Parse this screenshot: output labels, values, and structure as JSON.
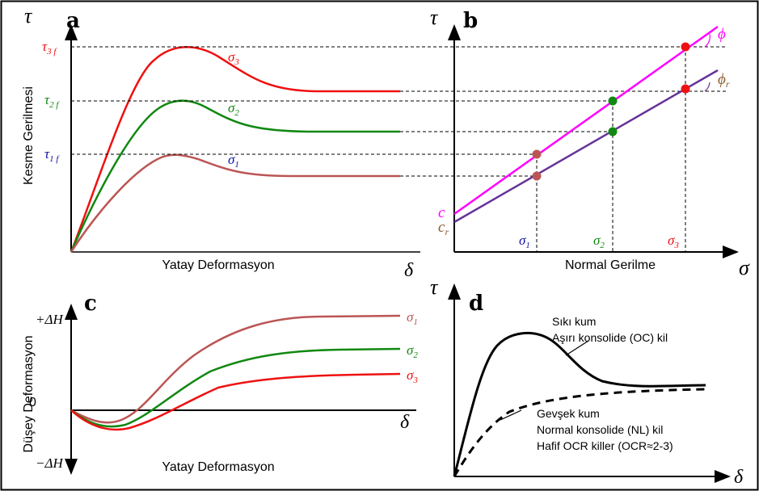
{
  "colors": {
    "red": "#ee1111",
    "green": "#118811",
    "brown": "#bb5555",
    "magenta": "#ff00ff",
    "purple": "#663399",
    "blue": "#1111aa",
    "brown_text": "#8B5A2B",
    "black": "#000000"
  },
  "panel_a": {
    "letter": "a",
    "y_symbol": "τ",
    "x_symbol": "δ",
    "y_label": "Kesme Gerilmesi",
    "x_label": "Yatay Deformasyon",
    "tau3": "τ",
    "tau3_sub": "3 f",
    "tau2": "τ",
    "tau2_sub": "2 f",
    "tau1": "τ",
    "tau1_sub": "1 f",
    "sigma3": "σ",
    "sigma3_sub": "3",
    "sigma2": "σ",
    "sigma2_sub": "2",
    "sigma1": "σ",
    "sigma1_sub": "1"
  },
  "panel_b": {
    "letter": "b",
    "y_symbol": "τ",
    "x_symbol": "σ",
    "x_label": "Normal Gerilme",
    "phi": "ϕ",
    "phi_r": "ϕ",
    "phi_r_sub": "r",
    "c": "c",
    "c_r": "c",
    "c_r_sub": "r",
    "s1": "σ",
    "s1_sub": "1",
    "s2": "σ",
    "s2_sub": "2",
    "s3": "σ",
    "s3_sub": "3"
  },
  "panel_c": {
    "letter": "c",
    "y_label": "Düşey Deformasyon",
    "x_label": "Yatay Deformasyon",
    "x_symbol": "δ",
    "plus_dh": "+ΔH",
    "minus_dh": "−ΔH",
    "zero": "0",
    "s1": "σ",
    "s1_sub": "1",
    "s2": "σ",
    "s2_sub": "2",
    "s3": "σ",
    "s3_sub": "3"
  },
  "panel_d": {
    "letter": "d",
    "y_symbol": "τ",
    "x_symbol": "δ",
    "dense_line1": "Sıkı kum",
    "dense_line2": "Aşırı konsolide (OC) kil",
    "loose_line1": "Gevşek kum",
    "loose_line2": "Normal konsolide (NL) kil",
    "loose_line3": "Hafif OCR killer (OCR≈2-3)"
  }
}
